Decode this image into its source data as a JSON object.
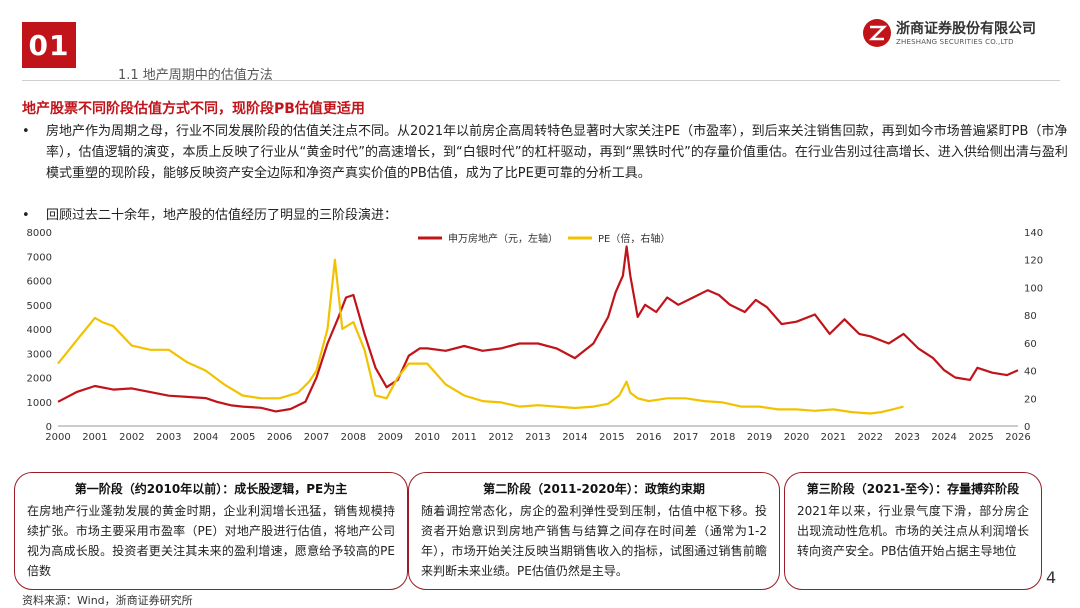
{
  "section": {
    "number": "01",
    "subtitle": "1.1 地产周期中的估值方法"
  },
  "logo": {
    "cn": "浙商证券股份有限公司",
    "en": "ZHESHANG SECURITIES CO.,LTD"
  },
  "headline": "地产股票不同阶段估值方式不同，现阶段PB估值更适用",
  "bullets": [
    {
      "dot": "•",
      "text": "房地产作为周期之母，行业不同发展阶段的估值关注点不同。从2021年以前房企高周转特色显著时大家关注PE（市盈率），到后来关注销售回款，再到如今市场普遍紧盯PB（市净率），估值逻辑的演变，本质上反映了行业从“黄金时代”的高速增长，到“白银时代”的杠杆驱动，再到“黑铁时代”的存量价值重估。在行业告别过往高增长、进入供给侧出清与盈利模式重塑的现阶段，能够反映资产安全边际和净资产真实价值的PB估值，成为了比PE更可靠的分析工具。"
    },
    {
      "dot": "•",
      "text": "回顾过去二十余年，地产股的估值经历了明显的三阶段演进："
    }
  ],
  "chart_data": {
    "type": "line",
    "legend": [
      "申万房地产（元，左轴）",
      "PE（倍，右轴）"
    ],
    "legend_position": "top-center",
    "colors": {
      "index": "#c0141a",
      "pe": "#f2c200"
    },
    "x_ticks": [
      "2000",
      "2001",
      "2002",
      "2003",
      "2004",
      "2005",
      "2006",
      "2007",
      "2008",
      "2009",
      "2010",
      "2011",
      "2012",
      "2013",
      "2014",
      "2015",
      "2016",
      "2017",
      "2018",
      "2019",
      "2020",
      "2021",
      "2022",
      "2023",
      "2024",
      "2025",
      "2026"
    ],
    "y_left": {
      "ticks": [
        "0",
        "1000",
        "2000",
        "3000",
        "4000",
        "5000",
        "6000",
        "7000",
        "8000"
      ],
      "range": [
        0,
        8000
      ]
    },
    "y_right": {
      "ticks": [
        "0",
        "20",
        "40",
        "60",
        "80",
        "100",
        "120",
        "140"
      ],
      "range": [
        0,
        140
      ]
    },
    "series": [
      {
        "name": "申万房地产（元，左轴）",
        "axis": "left",
        "x": [
          2000.0,
          2000.5,
          2001.0,
          2001.5,
          2002.0,
          2002.5,
          2003.0,
          2003.5,
          2004.0,
          2004.3,
          2004.7,
          2005.0,
          2005.5,
          2005.9,
          2006.3,
          2006.7,
          2007.0,
          2007.3,
          2007.6,
          2007.8,
          2008.0,
          2008.3,
          2008.6,
          2008.9,
          2009.2,
          2009.5,
          2009.8,
          2010.0,
          2010.5,
          2011.0,
          2011.5,
          2012.0,
          2012.5,
          2013.0,
          2013.5,
          2014.0,
          2014.5,
          2014.9,
          2015.1,
          2015.3,
          2015.4,
          2015.5,
          2015.7,
          2015.9,
          2016.2,
          2016.5,
          2016.8,
          2017.2,
          2017.6,
          2017.9,
          2018.2,
          2018.6,
          2018.9,
          2019.2,
          2019.6,
          2020.0,
          2020.5,
          2020.9,
          2021.3,
          2021.7,
          2022.0,
          2022.5,
          2022.9,
          2023.3,
          2023.7,
          2024.0,
          2024.3,
          2024.7,
          2024.9,
          2025.3,
          2025.7,
          2026.0
        ],
        "y": [
          1000,
          1400,
          1650,
          1500,
          1550,
          1400,
          1250,
          1200,
          1150,
          1000,
          850,
          800,
          750,
          600,
          700,
          1000,
          2000,
          3400,
          4500,
          5300,
          5400,
          3800,
          2400,
          1600,
          1900,
          2900,
          3200,
          3200,
          3100,
          3300,
          3100,
          3200,
          3400,
          3400,
          3200,
          2800,
          3400,
          4500,
          5500,
          6200,
          7400,
          6200,
          4500,
          5000,
          4700,
          5300,
          5000,
          5300,
          5600,
          5400,
          5000,
          4700,
          5200,
          4900,
          4200,
          4300,
          4600,
          3800,
          4400,
          3800,
          3700,
          3400,
          3800,
          3200,
          2800,
          2300,
          2000,
          1900,
          2400,
          2200,
          2100,
          2300
        ]
      },
      {
        "name": "PE（倍，右轴）",
        "axis": "right",
        "x": [
          2000.0,
          2000.3,
          2000.6,
          2001.0,
          2001.2,
          2001.5,
          2002.0,
          2002.5,
          2003.0,
          2003.5,
          2004.0,
          2004.5,
          2005.0,
          2005.5,
          2006.0,
          2006.5,
          2006.8,
          2007.0,
          2007.3,
          2007.5,
          2007.7,
          2008.0,
          2008.3,
          2008.6,
          2008.9,
          2009.2,
          2009.5,
          2010.0,
          2010.5,
          2011.0,
          2011.5,
          2012.0,
          2012.5,
          2013.0,
          2013.5,
          2014.0,
          2014.5,
          2014.9,
          2015.2,
          2015.4,
          2015.5,
          2015.7,
          2016.0,
          2016.5,
          2017.0,
          2017.5,
          2018.0,
          2018.5,
          2019.0,
          2019.5,
          2020.0,
          2020.5,
          2021.0,
          2021.5,
          2022.0,
          2022.3,
          2022.6,
          2022.9
        ],
        "y": [
          45,
          55,
          65,
          78,
          75,
          72,
          58,
          55,
          55,
          46,
          40,
          30,
          22,
          20,
          20,
          24,
          32,
          40,
          70,
          120,
          70,
          75,
          55,
          22,
          20,
          35,
          45,
          45,
          30,
          22,
          18,
          17,
          14,
          15,
          14,
          13,
          14,
          16,
          22,
          32,
          24,
          20,
          18,
          20,
          20,
          18,
          17,
          14,
          14,
          12,
          12,
          11,
          12,
          10,
          9,
          10,
          12,
          14
        ]
      }
    ]
  },
  "phases": [
    {
      "title": "第一阶段（约2010年以前）：成长股逻辑，PE为主",
      "body": "在房地产行业蓬勃发展的黄金时期，企业利润增长迅猛，销售规模持续扩张。市场主要采用市盈率（PE）对地产股进行估值，将地产公司视为高成长股。投资者更关注其未来的盈利增速，愿意给予较高的PE倍数"
    },
    {
      "title": "第二阶段（2011-2020年）：政策约束期",
      "body": "随着调控常态化，房企的盈利弹性受到压制，估值中枢下移。投资者开始意识到房地产销售与结算之间存在时间差（通常为1-2年），市场开始关注反映当期销售收入的指标，试图通过销售前瞻来判断未来业绩。PE估值仍然是主导。"
    },
    {
      "title": "第三阶段（2021-至今）：存量搏弈阶段",
      "body": "2021年以来，行业景气度下滑，部分房企出现流动性危机。市场的关注点从利润增长转向资产安全。PB估值开始占据主导地位"
    }
  ],
  "source": "资料来源：Wind，浙商证券研究所",
  "page_number": "4"
}
